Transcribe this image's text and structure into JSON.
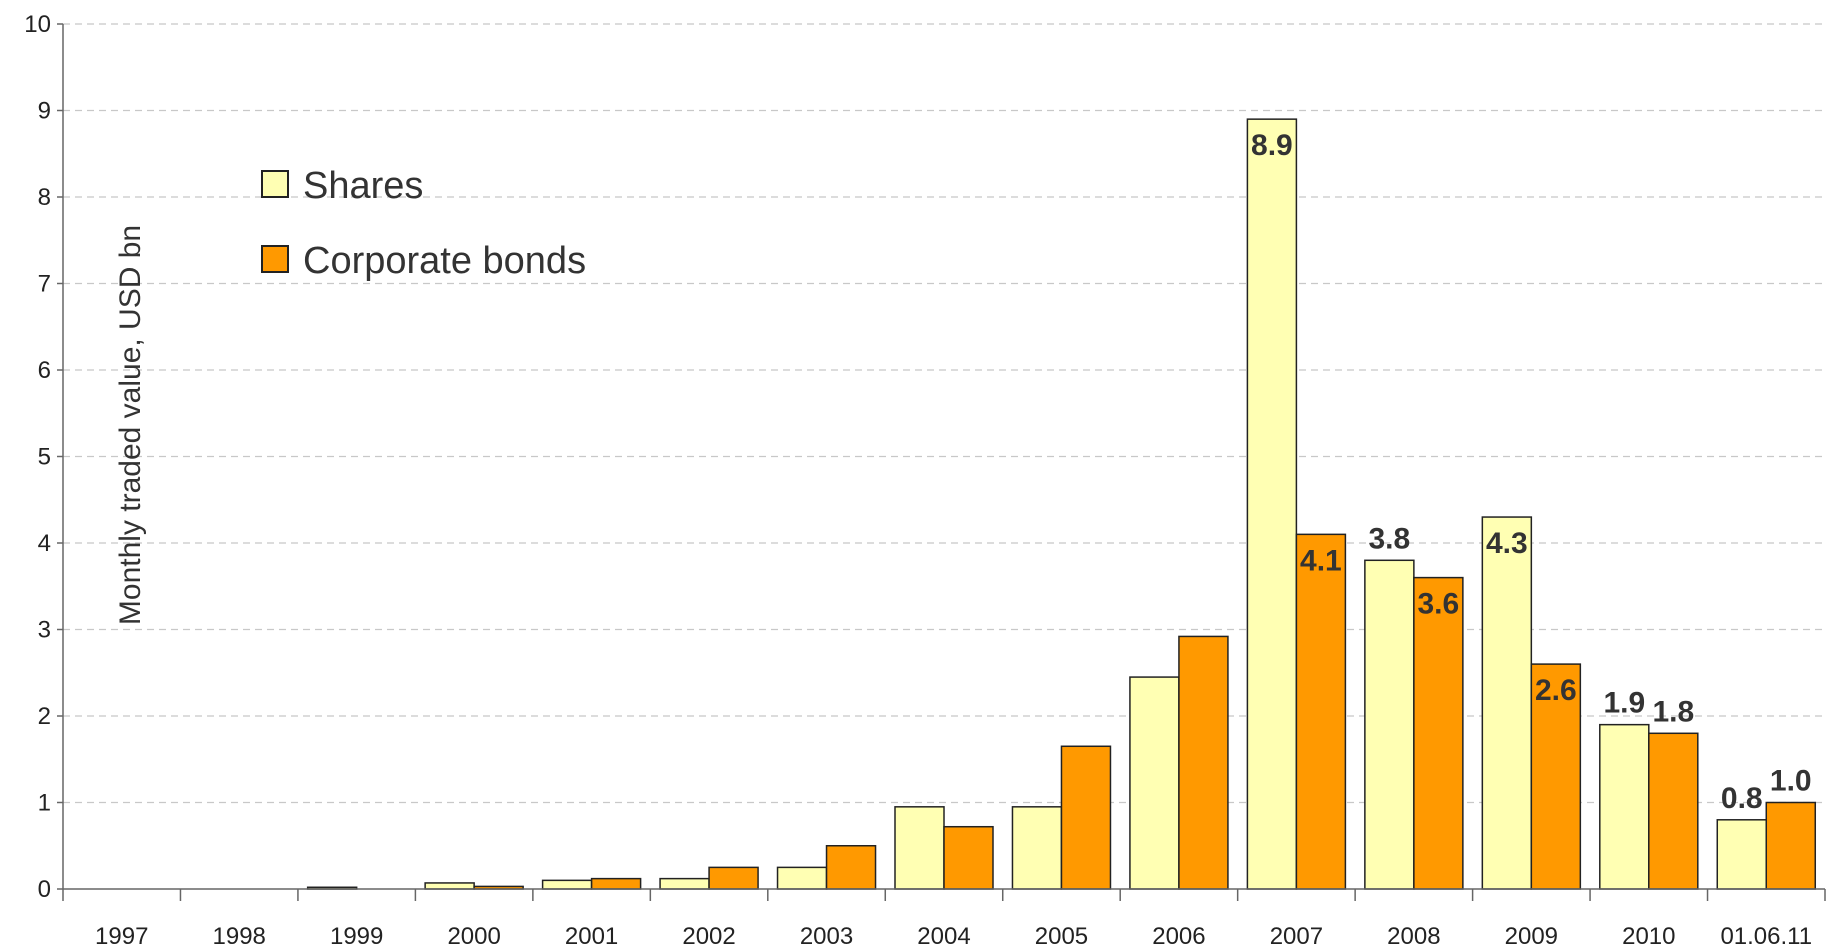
{
  "chart_data": {
    "type": "bar",
    "title": "",
    "xlabel": "",
    "ylabel": "Monthly traded value, USD bn",
    "ylim": [
      0,
      10
    ],
    "yticks": [
      "0",
      "1",
      "2",
      "3",
      "4",
      "5",
      "6",
      "7",
      "8",
      "9",
      "10"
    ],
    "grid": true,
    "legend_position": "top-left",
    "categories": [
      "1997",
      "1998",
      "1999",
      "2000",
      "2001",
      "2002",
      "2003",
      "2004",
      "2005",
      "2006",
      "2007",
      "2008",
      "2009",
      "2010",
      "01.06.11"
    ],
    "series": [
      {
        "name": "Shares",
        "color": "#FFFFB3",
        "values": [
          0,
          0,
          0.02,
          0.07,
          0.1,
          0.12,
          0.25,
          0.95,
          0.95,
          2.45,
          8.9,
          3.8,
          4.3,
          1.9,
          0.8
        ],
        "labels": [
          null,
          null,
          null,
          null,
          null,
          null,
          null,
          null,
          null,
          null,
          "8.9",
          "3.8",
          "4.3",
          "1.9",
          "0.8"
        ]
      },
      {
        "name": "Corporate bonds",
        "color": "#FF9900",
        "values": [
          0,
          0,
          0,
          0.03,
          0.12,
          0.25,
          0.5,
          0.72,
          1.65,
          2.92,
          4.1,
          3.6,
          2.6,
          1.8,
          1.0
        ],
        "labels": [
          null,
          null,
          null,
          null,
          null,
          null,
          null,
          null,
          null,
          null,
          "4.1",
          "3.6",
          "2.6",
          "1.8",
          "1.0"
        ]
      }
    ]
  }
}
